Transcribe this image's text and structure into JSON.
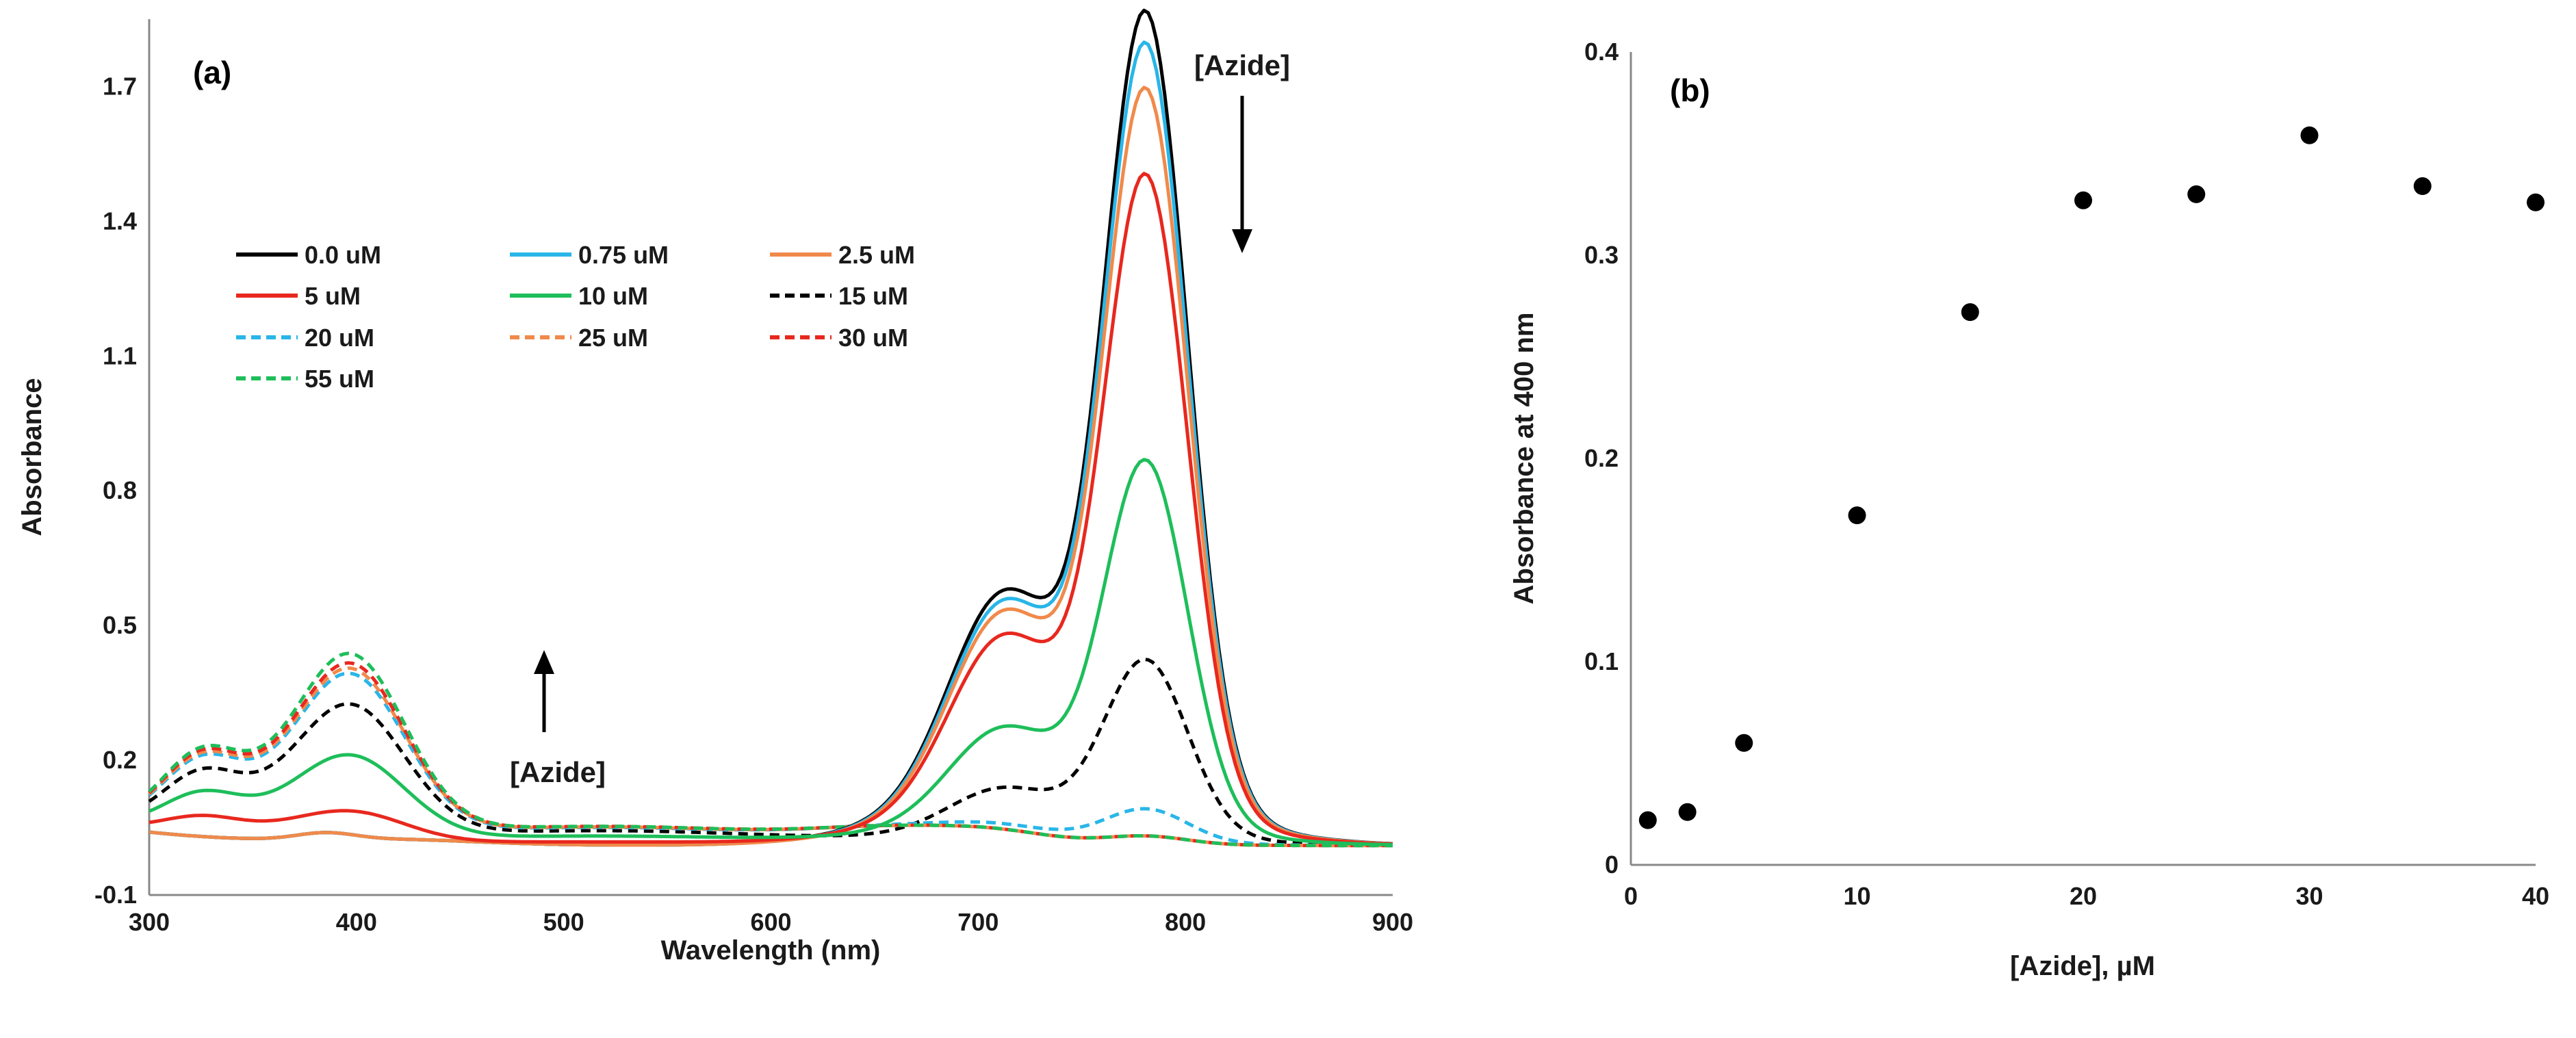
{
  "chart_data": [
    {
      "id": "a",
      "type": "line",
      "panel_label": "(a)",
      "xlabel": "Wavelength (nm)",
      "ylabel": "Absorbance",
      "xlim": [
        300,
        900
      ],
      "ylim": [
        -0.1,
        1.85
      ],
      "xticks": [
        "300",
        "400",
        "500",
        "600",
        "700",
        "800",
        "900"
      ],
      "yticks": [
        "-0.1",
        "0.2",
        "0.5",
        "0.8",
        "1.1",
        "1.4",
        "1.7"
      ],
      "annotations": {
        "top": "[Azide]",
        "bottom": "[Azide]"
      },
      "series": [
        {
          "name": "0.0 uM",
          "color": "#000000",
          "dashed": false,
          "peak780": 1.84,
          "shoulder715": 0.54,
          "band400": 0.0,
          "dip380": 0.04
        },
        {
          "name": "0.75 uM",
          "color": "#29b6e8",
          "dashed": false,
          "peak780": 1.77,
          "shoulder715": 0.52,
          "band400": 0.0,
          "dip380": 0.04
        },
        {
          "name": "2.5 uM",
          "color": "#f08a4b",
          "dashed": false,
          "peak780": 1.67,
          "shoulder715": 0.5,
          "band400": 0.0,
          "dip380": 0.04
        },
        {
          "name": "5 uM",
          "color": "#e8281e",
          "dashed": false,
          "peak780": 1.48,
          "shoulder715": 0.45,
          "band400": 0.06,
          "dip380": 0.08
        },
        {
          "name": "10 uM",
          "color": "#1ebe5a",
          "dashed": false,
          "peak780": 0.85,
          "shoulder715": 0.25,
          "band400": 0.17,
          "dip380": 0.17
        },
        {
          "name": "15 uM",
          "color": "#000000",
          "dashed": true,
          "peak780": 0.41,
          "shoulder715": 0.12,
          "band400": 0.27,
          "dip380": 0.25
        },
        {
          "name": "20 uM",
          "color": "#29b6e8",
          "dashed": true,
          "peak780": 0.08,
          "shoulder715": 0.03,
          "band400": 0.33,
          "dip380": 0.3
        },
        {
          "name": "25 uM",
          "color": "#f08a4b",
          "dashed": true,
          "peak780": 0.02,
          "shoulder715": 0.02,
          "band400": 0.34,
          "dip380": 0.31
        },
        {
          "name": "30 uM",
          "color": "#e8281e",
          "dashed": true,
          "peak780": 0.02,
          "shoulder715": 0.02,
          "band400": 0.35,
          "dip380": 0.32
        },
        {
          "name": "55 uM",
          "color": "#1ebe5a",
          "dashed": true,
          "peak780": 0.02,
          "shoulder715": 0.02,
          "band400": 0.37,
          "dip380": 0.33
        }
      ]
    },
    {
      "id": "b",
      "type": "scatter",
      "panel_label": "(b)",
      "xlabel": "[Azide], µM",
      "ylabel": "Absorbance at 400 nm",
      "xlim": [
        0,
        40
      ],
      "ylim": [
        0,
        0.4
      ],
      "xticks": [
        "0",
        "10",
        "20",
        "30",
        "40"
      ],
      "yticks": [
        "0",
        "0.1",
        "0.2",
        "0.3",
        "0.4"
      ],
      "x": [
        0.75,
        2.5,
        5,
        10,
        15,
        20,
        25,
        30,
        35,
        40
      ],
      "y": [
        0.022,
        0.026,
        0.06,
        0.172,
        0.272,
        0.327,
        0.33,
        0.359,
        0.334,
        0.326
      ],
      "marker_color": "#000000"
    }
  ]
}
